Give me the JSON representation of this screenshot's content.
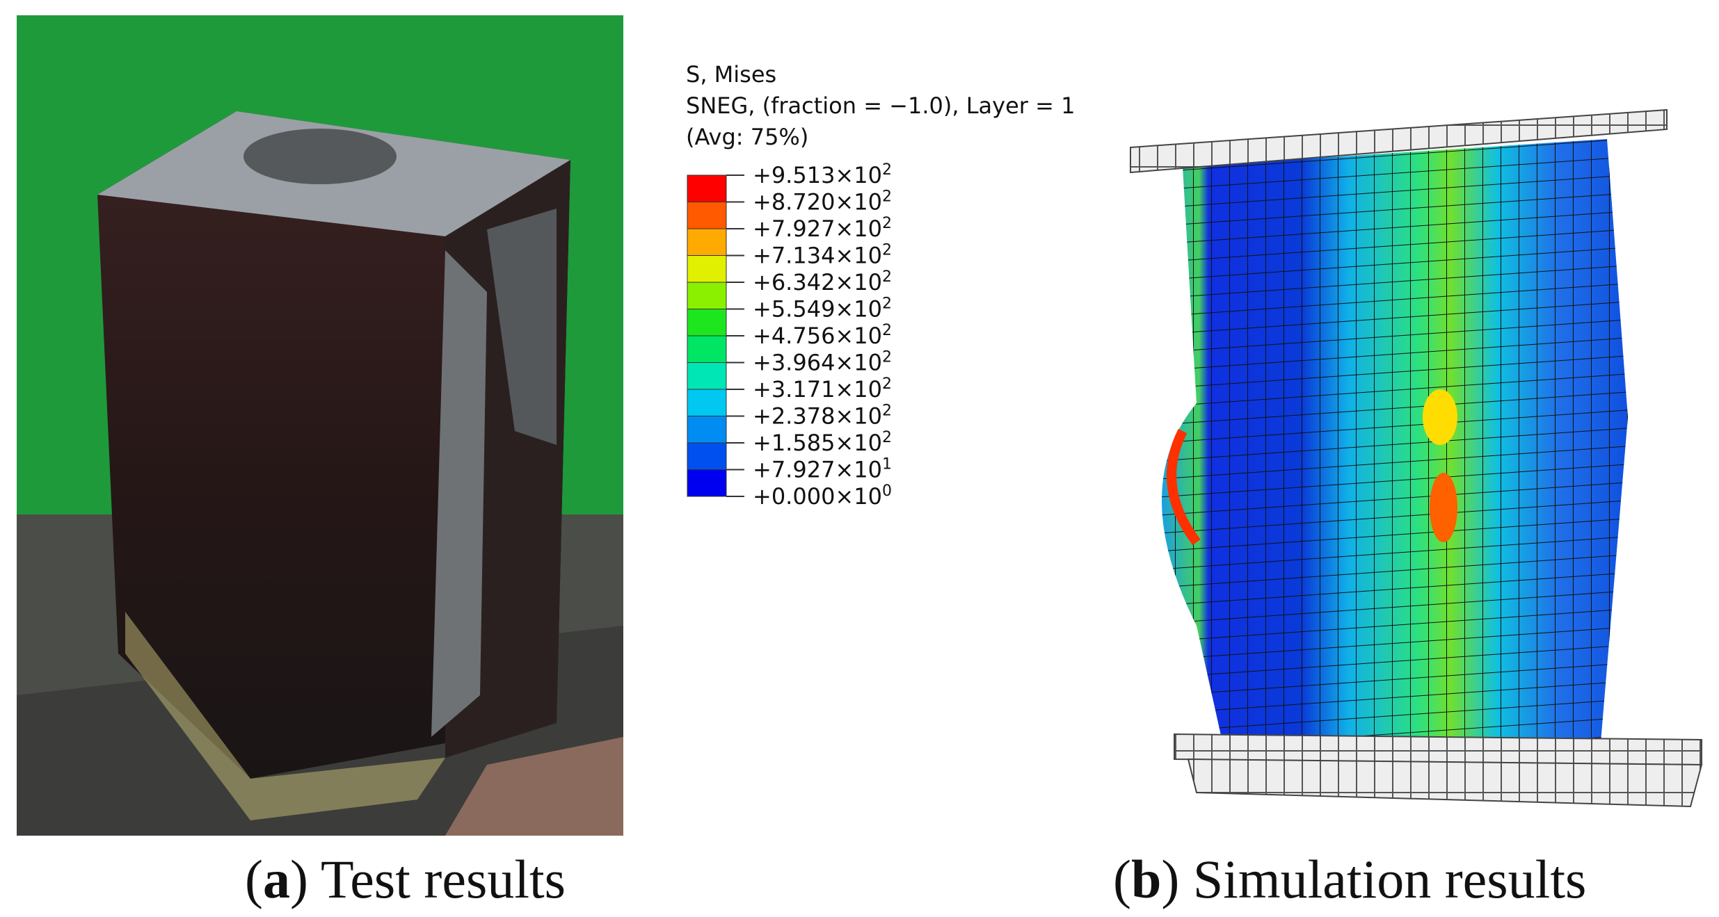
{
  "panels": [
    {
      "caption": [
        "(",
        "a",
        ") Test results"
      ]
    },
    {
      "caption": [
        "(",
        "b",
        ") Simulation results"
      ]
    }
  ],
  "legend": {
    "lines": [
      "S, Mises",
      "SNEG, (fraction = −1.0), Layer = 1",
      "(Avg: 75%)"
    ],
    "labels": [
      {
        "mantissa": "+9.513×10",
        "exponent": "2"
      },
      {
        "mantissa": "+8.720×10",
        "exponent": "2"
      },
      {
        "mantissa": "+7.927×10",
        "exponent": "2"
      },
      {
        "mantissa": "+7.134×10",
        "exponent": "2"
      },
      {
        "mantissa": "+6.342×10",
        "exponent": "2"
      },
      {
        "mantissa": "+5.549×10",
        "exponent": "2"
      },
      {
        "mantissa": "+4.756×10",
        "exponent": "2"
      },
      {
        "mantissa": "+3.964×10",
        "exponent": "2"
      },
      {
        "mantissa": "+3.171×10",
        "exponent": "2"
      },
      {
        "mantissa": "+2.378×10",
        "exponent": "2"
      },
      {
        "mantissa": "+1.585×10",
        "exponent": "2"
      },
      {
        "mantissa": "+7.927×10",
        "exponent": "1"
      },
      {
        "mantissa": "+0.000×10",
        "exponent": "0"
      }
    ],
    "colors": [
      "#ff0000",
      "#ff5a00",
      "#ffaa00",
      "#e1f000",
      "#8af000",
      "#1ee61e",
      "#00e664",
      "#00e6b4",
      "#00c8f0",
      "#008cf0",
      "#0050f0",
      "#0000f0"
    ]
  }
}
